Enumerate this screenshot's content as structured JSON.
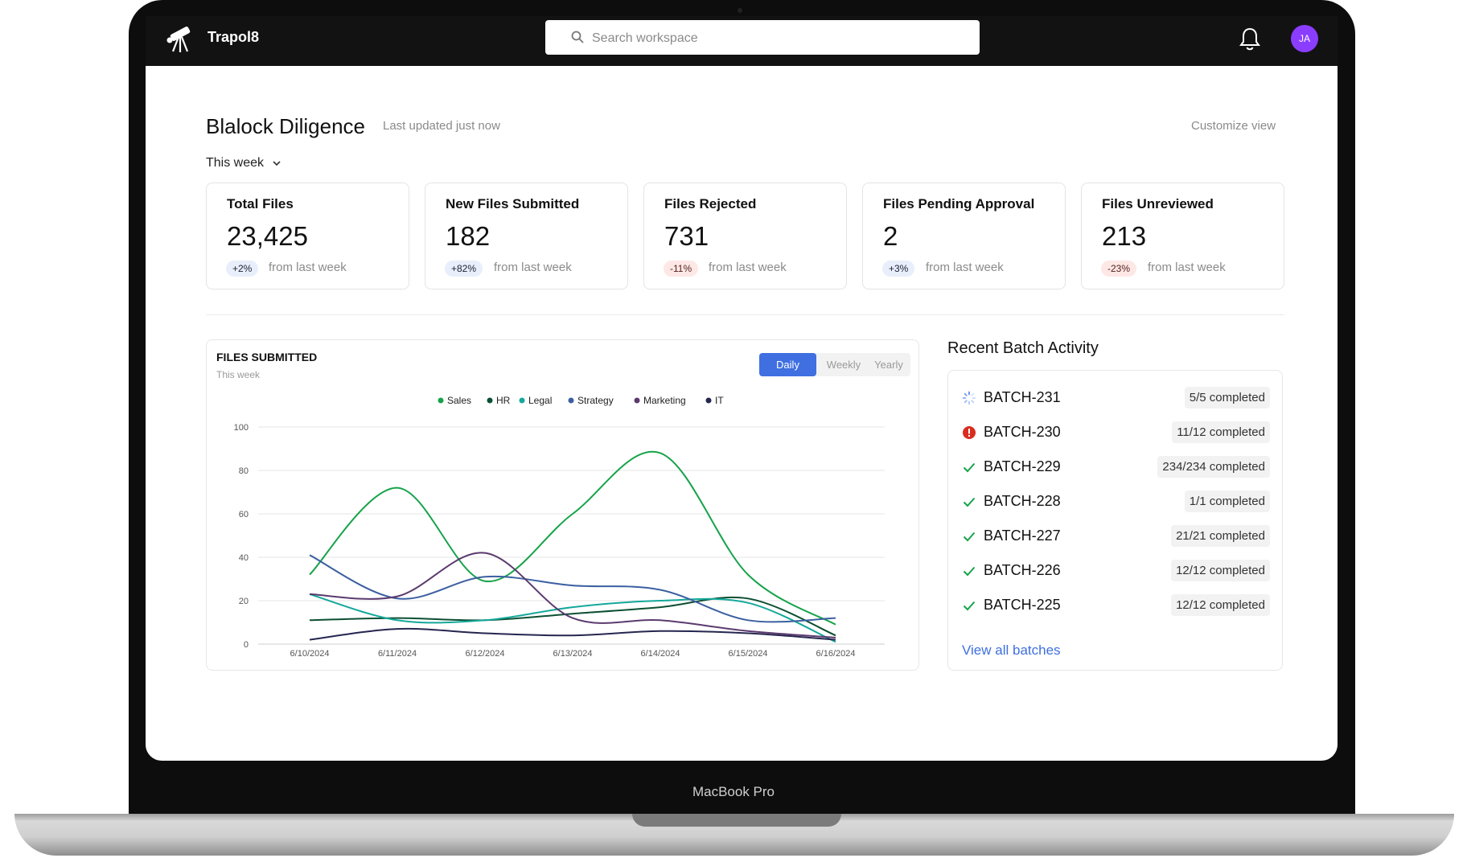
{
  "device": {
    "brand": "MacBook Pro"
  },
  "app": {
    "name": "Trapol8"
  },
  "search": {
    "placeholder": "Search workspace"
  },
  "user": {
    "initials": "JA",
    "avatar_color": "#8b3dff"
  },
  "header": {
    "title": "Blalock Diligence",
    "last_updated": "Last updated just now",
    "customize": "Customize view",
    "period": "This week"
  },
  "stats": [
    {
      "label": "Total Files",
      "value": "23,425",
      "delta": "+2%",
      "trend": "up",
      "suffix": "from last week"
    },
    {
      "label": "New Files Submitted",
      "value": "182",
      "delta": "+82%",
      "trend": "up",
      "suffix": "from last week"
    },
    {
      "label": "Files Rejected",
      "value": "731",
      "delta": "-11%",
      "trend": "down",
      "suffix": "from last week"
    },
    {
      "label": "Files Pending Approval",
      "value": "2",
      "delta": "+3%",
      "trend": "up",
      "suffix": "from last week"
    },
    {
      "label": "Files Unreviewed",
      "value": "213",
      "delta": "-23%",
      "trend": "down",
      "suffix": "from last week"
    }
  ],
  "chart_panel": {
    "title": "FILES SUBMITTED",
    "subtitle": "This week",
    "tabs": [
      "Daily",
      "Weekly",
      "Yearly"
    ],
    "active_tab": "Daily"
  },
  "chart_data": {
    "type": "line",
    "x": [
      "6/10/2024",
      "6/11/2024",
      "6/12/2024",
      "6/13/2024",
      "6/14/2024",
      "6/15/2024",
      "6/16/2024"
    ],
    "ylim": [
      0,
      100
    ],
    "yticks": [
      0,
      20,
      40,
      60,
      80,
      100
    ],
    "grid": true,
    "legend_position": "top",
    "series": [
      {
        "name": "Sales",
        "color": "#16a34a",
        "values": [
          32,
          72,
          29,
          60,
          88,
          32,
          9
        ]
      },
      {
        "name": "HR",
        "color": "#0b4f32",
        "values": [
          11,
          12,
          11,
          14,
          17,
          21,
          4
        ]
      },
      {
        "name": "Legal",
        "color": "#14a89a",
        "values": [
          23,
          11,
          11,
          17,
          20,
          19,
          1
        ]
      },
      {
        "name": "Strategy",
        "color": "#3b5fa0",
        "values": [
          41,
          21,
          31,
          27,
          25,
          11,
          12
        ]
      },
      {
        "name": "Marketing",
        "color": "#5b3a6e",
        "values": [
          23,
          22,
          42,
          12,
          11,
          6,
          3
        ]
      },
      {
        "name": "IT",
        "color": "#25264f",
        "values": [
          2,
          7,
          5,
          4,
          6,
          5,
          2
        ]
      }
    ]
  },
  "batches": {
    "title": "Recent Batch Activity",
    "items": [
      {
        "id": "BATCH-231",
        "status": "5/5 completed",
        "icon": "spinner-icon"
      },
      {
        "id": "BATCH-230",
        "status": "11/12 completed",
        "icon": "error-icon"
      },
      {
        "id": "BATCH-229",
        "status": "234/234 completed",
        "icon": "check-icon"
      },
      {
        "id": "BATCH-228",
        "status": "1/1 completed",
        "icon": "check-icon"
      },
      {
        "id": "BATCH-227",
        "status": "21/21 completed",
        "icon": "check-icon"
      },
      {
        "id": "BATCH-226",
        "status": "12/12 completed",
        "icon": "check-icon"
      },
      {
        "id": "BATCH-225",
        "status": "12/12 completed",
        "icon": "check-icon"
      }
    ],
    "view_all": "View all batches"
  }
}
